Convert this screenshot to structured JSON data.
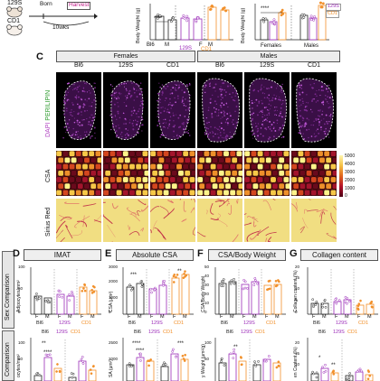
{
  "schematic": {
    "mouse_strains": [
      "129S",
      "CD1"
    ],
    "born_label": "Born",
    "harvest_label": "Harvest",
    "age_label": "10wks"
  },
  "panel_c": {
    "letter": "C",
    "females_label": "Females",
    "males_label": "Males",
    "strains": [
      "Bl6",
      "129S",
      "CD1",
      "Bl6",
      "129S",
      "CD1"
    ],
    "row_labels": [
      "DAPI PERILIPIN",
      "CSA",
      "Sirius Red"
    ],
    "dapi_label": "DAPI",
    "perilipin_label": "PERILIPIN",
    "csa_legend_ticks": [
      "5000",
      "4000",
      "3000",
      "2000",
      "1000",
      "0"
    ]
  },
  "top_charts": {
    "ylabel": "Body Weight (g)",
    "left": {
      "x_labels": [
        "Bl6",
        "M",
        "129S",
        "F",
        "M",
        "CD1"
      ],
      "sig": "****"
    },
    "right": {
      "x_labels": [
        "Females",
        "Males"
      ],
      "legend": [
        "129S",
        "CD1"
      ],
      "sig": "****"
    }
  },
  "bottom": {
    "row1_label": "Sex Comparison",
    "row2_label": "Comparison",
    "panels": [
      {
        "letter": "D",
        "title": "IMAT",
        "ylabel": "Adipocytes/mm²",
        "ylabel2": "ocytes/mm²"
      },
      {
        "letter": "E",
        "title": "Absolute CSA",
        "ylabel": "CSA (µm²)",
        "ylabel2": "SA (µm²)"
      },
      {
        "letter": "F",
        "title": "CSA/Body Weight",
        "ylabel": "CSA/Body Weight",
        "ylabel2": "y Weight (µm²/g)"
      },
      {
        "letter": "G",
        "title": "Collagen content",
        "ylabel": "Collagen content (%)",
        "ylabel2": "en Content (%)"
      }
    ],
    "group_labels": [
      "Bl6",
      "129S",
      "CD1"
    ],
    "sex_labels": [
      "F",
      "M"
    ],
    "e_row1_sig": [
      "***",
      "**"
    ],
    "e_row2_sig": [
      "****",
      "****",
      "***"
    ],
    "d_row2_sig": [
      "**",
      "****"
    ],
    "f_row2_sig": [
      "**"
    ],
    "g_row2_sig": [
      "*",
      "**"
    ],
    "e_axis_ticks": [
      "3000",
      "2000",
      "1000",
      "0"
    ],
    "e_axis_ticks2": [
      "2500",
      "2000"
    ],
    "f_axis_ticks": [
      "50",
      "40",
      "30",
      "20",
      "10",
      "0"
    ],
    "g_axis_ticks": [
      "20",
      "15",
      "10",
      "5",
      "0"
    ],
    "d_axis_ticks": [
      "100",
      "50",
      "0"
    ],
    "d_axis_ticks2": [
      "100",
      "50"
    ],
    "f_axis_ticks2": [
      "100",
      "50"
    ],
    "g_axis_ticks2": [
      "20",
      "15",
      "10"
    ],
    "row2_legend": [
      "Bl6",
      "129S",
      "CD1"
    ]
  },
  "colors": {
    "bl6": "#222222",
    "s129": "#9b2bb8",
    "cd1": "#f2902a",
    "dapi_purple": "#6a1d7a",
    "sirius_yellow": "#f1de82"
  }
}
